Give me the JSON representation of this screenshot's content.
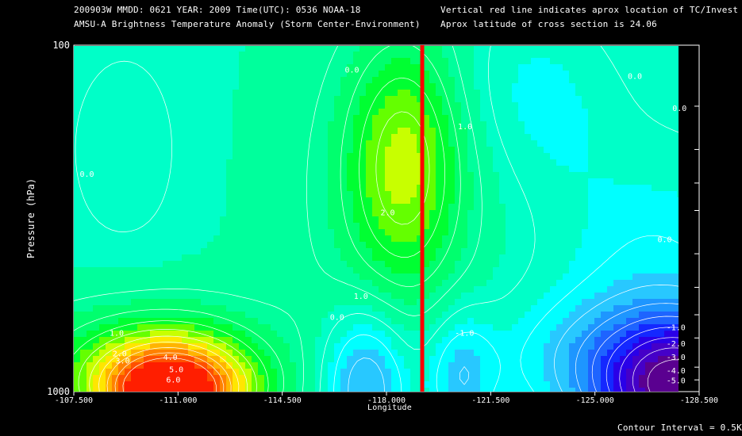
{
  "header": {
    "line1_left": "200903W  MMDD: 0621 YEAR: 2009 Time(UTC): 0536 NOAA-18",
    "line2_left": "AMSU-A Brightness Temperature Anomaly (Storm Center-Environment)",
    "line1_right": "Vertical red line indicates aprox location of TC/Invest",
    "line2_right": "Aprox latitude of cross section is 24.06"
  },
  "footer": {
    "contour_interval": "Contour Interval = 0.5K"
  },
  "colors": {
    "background": "#000000",
    "tc_line": "#ff0000",
    "contour_line": "#ffffff",
    "level_colors": [
      "#5a0090",
      "#4500c8",
      "#2a00e8",
      "#1428ff",
      "#1e64ff",
      "#1e96ff",
      "#28c8ff",
      "#00ffff",
      "#00ffc8",
      "#00ff9c",
      "#00ff6e",
      "#00ff32",
      "#64ff00",
      "#c8ff00",
      "#ffe600",
      "#ffb400",
      "#ff8200",
      "#ff5000",
      "#ff1e00"
    ]
  },
  "chart_data": {
    "type": "heatmap",
    "xlabel": "Longitude",
    "ylabel": "Pressure (hPa)",
    "xlim": [
      -107.5,
      -128.5
    ],
    "ylim": [
      1000,
      100
    ],
    "y_scale": "log",
    "x_ticks": [
      -107.5,
      -111.0,
      -114.5,
      -118.0,
      -121.5,
      -125.0,
      -128.5
    ],
    "x_tick_labels": [
      "-107.500",
      "-111.000",
      "-114.500",
      "-118.000",
      "-121.500",
      "-125.000",
      "-128.500"
    ],
    "y_tick_labels": [
      "100",
      "1000"
    ],
    "y_minor_ticks": [
      150,
      200,
      250,
      300,
      400,
      500,
      600,
      700,
      850,
      925
    ],
    "tc_longitude": -119.2,
    "lat_cross_section": 24.06,
    "contour_interval": 0.5,
    "contour_labels": [
      {
        "text": "0.0",
        "lon": -116.6,
        "p": 120
      },
      {
        "text": "0.0",
        "lon": -126.1,
        "p": 125
      },
      {
        "text": "0.0",
        "lon": -127.6,
        "p": 155
      },
      {
        "text": "0.0",
        "lon": -107.7,
        "p": 240
      },
      {
        "text": "1.0",
        "lon": -120.4,
        "p": 175
      },
      {
        "text": "2.0",
        "lon": -117.8,
        "p": 310
      },
      {
        "text": "0.0",
        "lon": -127.1,
        "p": 370
      },
      {
        "text": "1.0",
        "lon": -116.9,
        "p": 540
      },
      {
        "text": "0.0",
        "lon": -116.1,
        "p": 620
      },
      {
        "text": "1.0",
        "lon": -108.7,
        "p": 690
      },
      {
        "text": "2.0",
        "lon": -108.8,
        "p": 790
      },
      {
        "text": "3.0",
        "lon": -108.9,
        "p": 830
      },
      {
        "text": "4.0",
        "lon": -110.5,
        "p": 810
      },
      {
        "text": "5.0",
        "lon": -110.7,
        "p": 880
      },
      {
        "text": "6.0",
        "lon": -110.6,
        "p": 940
      },
      {
        "text": "-1.0",
        "lon": -120.3,
        "p": 690
      },
      {
        "text": "-1.0",
        "lon": -127.4,
        "p": 665
      },
      {
        "text": "-2.0",
        "lon": -127.4,
        "p": 740
      },
      {
        "text": "-3.0",
        "lon": -127.4,
        "p": 810
      },
      {
        "text": "-4.0",
        "lon": -127.4,
        "p": 885
      },
      {
        "text": "-5.0",
        "lon": -127.4,
        "p": 945
      }
    ],
    "grid": false
  }
}
